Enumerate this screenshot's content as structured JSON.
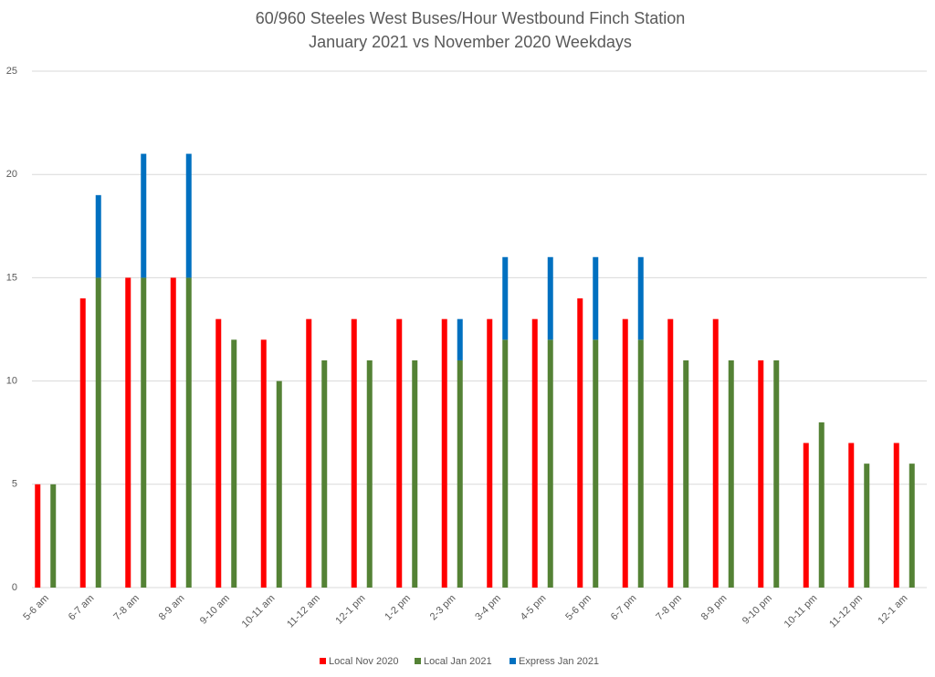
{
  "chart_data": {
    "type": "bar",
    "title": "60/960 Steeles West Buses/Hour Westbound Finch Station",
    "subtitle": "January 2021 vs November 2020 Weekdays",
    "categories": [
      "5-6 am",
      "6-7 am",
      "7-8 am",
      "8-9 am",
      "9-10 am",
      "10-11 am",
      "11-12 am",
      "12-1 pm",
      "1-2 pm",
      "2-3 pm",
      "3-4 pm",
      "4-5 pm",
      "5-6 pm",
      "6-7 pm",
      "7-8 pm",
      "8-9 pm",
      "9-10 pm",
      "10-11 pm",
      "11-12 pm",
      "12-1 am"
    ],
    "series": [
      {
        "name": "Local Nov 2020",
        "color": "#ff0000",
        "group": 0,
        "values": [
          5,
          14,
          15,
          15,
          13,
          12,
          13,
          13,
          13,
          13,
          13,
          13,
          14,
          13,
          13,
          13,
          11,
          7,
          7,
          7
        ]
      },
      {
        "name": "Local Jan 2021",
        "color": "#548235",
        "group": 1,
        "values": [
          5,
          15,
          15,
          15,
          12,
          10,
          11,
          11,
          11,
          11,
          12,
          12,
          12,
          12,
          11,
          11,
          11,
          8,
          6,
          6
        ]
      },
      {
        "name": "Express Jan 2021",
        "color": "#0070c0",
        "group": 1,
        "values": [
          0,
          4,
          6,
          6,
          0,
          0,
          0,
          0,
          0,
          2,
          4,
          4,
          4,
          4,
          0,
          0,
          0,
          0,
          0,
          0
        ]
      }
    ],
    "ylim": [
      0,
      25
    ],
    "yticks": [
      0,
      5,
      10,
      15,
      20,
      25
    ],
    "grid": true,
    "legend": "bottom"
  }
}
